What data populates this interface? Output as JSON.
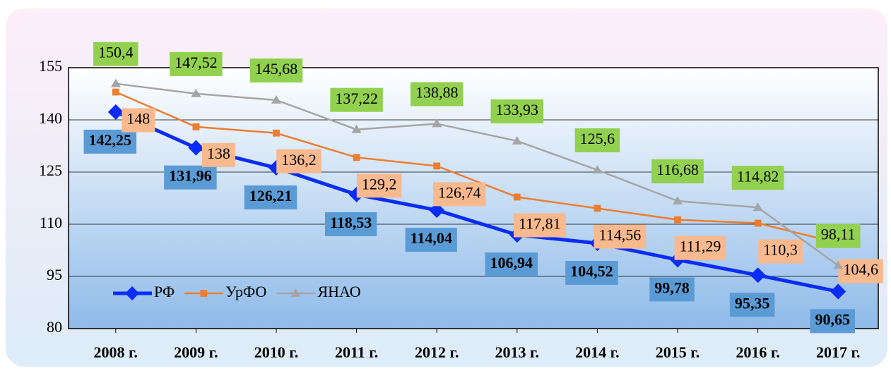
{
  "chart_data": {
    "type": "line",
    "categories": [
      "2008 г.",
      "2009 г.",
      "2010 г.",
      "2011 г.",
      "2012 г.",
      "2013 г.",
      "2014 г.",
      "2015 г.",
      "2016 г.",
      "2017 г."
    ],
    "series": [
      {
        "name": "РФ",
        "color": "#0a2cf5",
        "marker": "diamond",
        "label_color": "#5b9bd5",
        "values": [
          142.25,
          131.96,
          126.21,
          118.53,
          114.04,
          106.94,
          104.52,
          99.78,
          95.35,
          90.65
        ],
        "value_labels": [
          "142,25",
          "131,96",
          "126,21",
          "118,53",
          "114,04",
          "106,94",
          "104,52",
          "99,78",
          "95,35",
          "90,65"
        ]
      },
      {
        "name": "УрФО",
        "color": "#ed7d31",
        "marker": "square",
        "label_color": "#f8b98e",
        "values": [
          148,
          138,
          136.2,
          129.2,
          126.74,
          117.81,
          114.56,
          111.29,
          110.3,
          104.6
        ],
        "value_labels": [
          "148",
          "138",
          "136,2",
          "129,2",
          "126,74",
          "117,81",
          "114,56",
          "111,29",
          "110,3",
          "104,6"
        ]
      },
      {
        "name": "ЯНАО",
        "color": "#a5a5a5",
        "marker": "triangle",
        "label_color": "#92d050",
        "values": [
          150.4,
          147.52,
          145.68,
          137.22,
          138.88,
          133.93,
          125.6,
          116.68,
          114.82,
          98.11
        ],
        "value_labels": [
          "150,4",
          "147,52",
          "145,68",
          "137,22",
          "138,88",
          "133,93",
          "125,6",
          "116,68",
          "114,82",
          "98,11"
        ]
      }
    ],
    "ylim": [
      80,
      155
    ],
    "yticks": [
      80,
      95,
      110,
      125,
      140,
      155
    ],
    "grid": true,
    "legend": "lower left"
  }
}
